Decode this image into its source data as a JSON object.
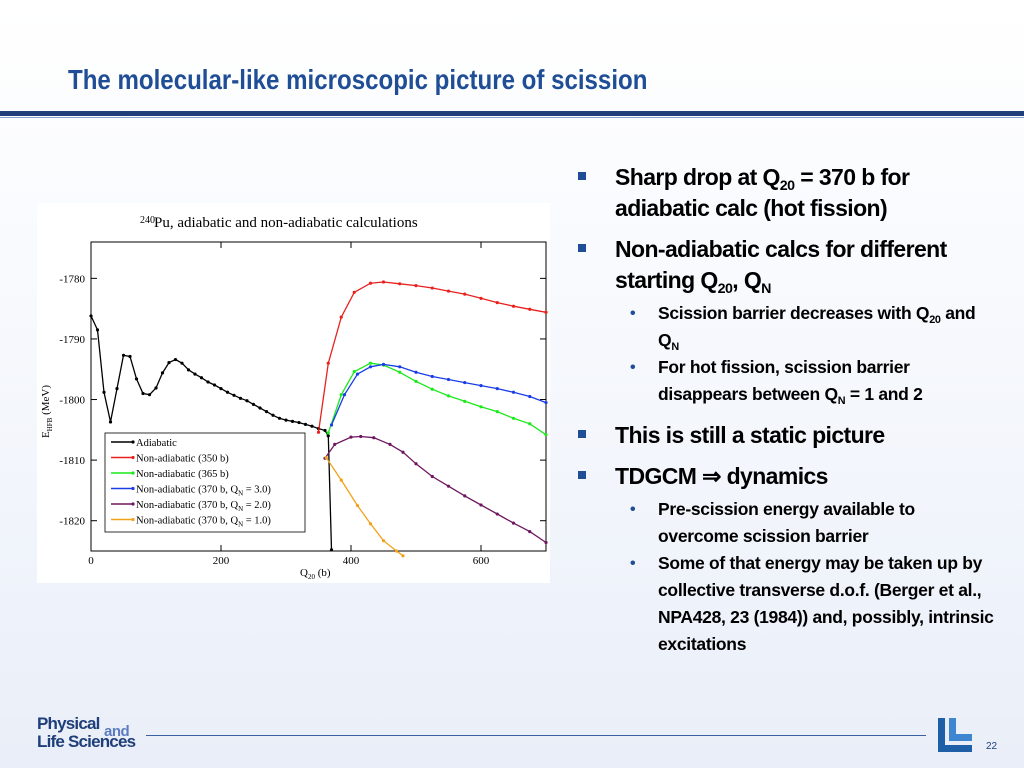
{
  "slide": {
    "title": "The molecular-like microscopic picture of scission",
    "page_number": "22",
    "footer_logo_text": [
      "Physical",
      "and",
      "Life Sciences"
    ]
  },
  "bullets": {
    "b1": {
      "pre": "Sharp drop at Q",
      "sub": "20",
      "post": " = 370 b for adiabatic calc (hot fission)"
    },
    "b2": {
      "pre": "Non-adiabatic calcs for different starting Q",
      "sub1": "20",
      "mid": ", Q",
      "sub2": "N"
    },
    "b2a": {
      "pre": "Scission barrier decreases with Q",
      "sub1": "20",
      "mid": " and Q",
      "sub2": "N"
    },
    "b2b": {
      "pre": "For hot fission, scission barrier disappears between Q",
      "sub": "N",
      "post": " = 1 and 2"
    },
    "b3": "This is still a static picture",
    "b4": {
      "pre": "TDGCM ",
      "arrow": "⇒",
      "post": " dynamics"
    },
    "b4a": "Pre-scission energy available to overcome scission barrier",
    "b4b": "Some of that energy may be taken up by collective transverse d.o.f. (Berger et al., NPA428, 23 (1984)) and, possibly, intrinsic excitations"
  },
  "chart_data": {
    "type": "line",
    "title_super": "240",
    "title": "Pu, adiabatic and non-adiabatic calculations",
    "xlabel_main": "Q",
    "xlabel_sub": "20",
    "xlabel_unit": " (b)",
    "ylabel_main": "E",
    "ylabel_sub": "HFB",
    "ylabel_unit": " (MeV)",
    "xlim": [
      0,
      700
    ],
    "ylim": [
      -1825,
      -1774
    ],
    "xticks": [
      0,
      200,
      400,
      600
    ],
    "yticks": [
      -1780,
      -1790,
      -1800,
      -1810,
      -1820
    ],
    "legend_position": "bottom-left",
    "series": [
      {
        "name": "Adiabatic",
        "color": "#000000",
        "x": [
          0,
          10,
          20,
          30,
          40,
          50,
          60,
          70,
          80,
          90,
          100,
          110,
          120,
          130,
          140,
          150,
          160,
          170,
          180,
          190,
          200,
          210,
          220,
          230,
          240,
          250,
          260,
          270,
          280,
          290,
          300,
          310,
          320,
          330,
          340,
          350,
          360,
          365,
          370
        ],
        "y": [
          -1786.2,
          -1788.5,
          -1798.8,
          -1803.7,
          -1798.2,
          -1792.7,
          -1792.9,
          -1796.6,
          -1799.0,
          -1799.2,
          -1798.1,
          -1795.6,
          -1793.9,
          -1793.4,
          -1794.0,
          -1795.1,
          -1795.8,
          -1796.4,
          -1797.1,
          -1797.6,
          -1798.2,
          -1798.8,
          -1799.3,
          -1799.8,
          -1800.2,
          -1800.8,
          -1801.4,
          -1802.0,
          -1802.6,
          -1803.1,
          -1803.4,
          -1803.6,
          -1803.8,
          -1804.1,
          -1804.4,
          -1804.8,
          -1805.1,
          -1806.0,
          -1824.8
        ]
      },
      {
        "name": "Non-adiabatic (350 b)",
        "color": "#e8211d",
        "x": [
          350,
          365,
          385,
          405,
          430,
          450,
          475,
          500,
          525,
          550,
          575,
          600,
          625,
          650,
          675,
          700
        ],
        "y": [
          -1805.4,
          -1794.0,
          -1786.4,
          -1782.3,
          -1780.8,
          -1780.6,
          -1780.9,
          -1781.2,
          -1781.6,
          -1782.1,
          -1782.6,
          -1783.3,
          -1784.0,
          -1784.6,
          -1785.1,
          -1785.6
        ]
      },
      {
        "name": "Non-adiabatic (365 b)",
        "color": "#19ea19",
        "x": [
          365,
          385,
          405,
          430,
          450,
          475,
          500,
          525,
          550,
          575,
          600,
          625,
          650,
          675,
          700
        ],
        "y": [
          -1805.5,
          -1799.2,
          -1795.4,
          -1794.0,
          -1794.3,
          -1795.5,
          -1797.0,
          -1798.3,
          -1799.4,
          -1800.3,
          -1801.2,
          -1802.0,
          -1803.1,
          -1804.0,
          -1805.8
        ]
      },
      {
        "name": "Non-adiabatic (370 b, Q_N = 3.0)",
        "color": "#1a3de6",
        "x": [
          370,
          390,
          410,
          430,
          450,
          475,
          500,
          525,
          550,
          575,
          600,
          625,
          650,
          675,
          700
        ],
        "y": [
          -1804.2,
          -1799.2,
          -1795.8,
          -1794.6,
          -1794.2,
          -1794.6,
          -1795.5,
          -1796.2,
          -1796.7,
          -1797.2,
          -1797.7,
          -1798.2,
          -1798.8,
          -1799.5,
          -1800.5
        ]
      },
      {
        "name": "Non-adiabatic (370 b, Q_N = 2.0)",
        "color": "#6e1760",
        "x": [
          360,
          375,
          400,
          415,
          435,
          460,
          480,
          500,
          525,
          550,
          575,
          600,
          625,
          650,
          675,
          700
        ],
        "y": [
          -1809.7,
          -1807.4,
          -1806.2,
          -1806.1,
          -1806.3,
          -1807.4,
          -1808.7,
          -1810.6,
          -1812.7,
          -1814.3,
          -1815.9,
          -1817.4,
          -1818.9,
          -1820.4,
          -1821.8,
          -1823.6
        ]
      },
      {
        "name": "Non-adiabatic (370 b, Q_N = 1.0)",
        "color": "#f2a21a",
        "x": [
          362,
          385,
          410,
          430,
          450,
          470,
          480
        ],
        "y": [
          -1809.6,
          -1813.3,
          -1817.5,
          -1820.5,
          -1823.3,
          -1825.0,
          -1825.8
        ]
      }
    ],
    "legend": [
      {
        "label": "Adiabatic",
        "sub": ""
      },
      {
        "label": "Non-adiabatic (350 b)",
        "sub": ""
      },
      {
        "label": "Non-adiabatic (365 b)",
        "sub": ""
      },
      {
        "label_pre": "Non-adiabatic (370 b, Q",
        "sub": "N",
        "label_post": " = 3.0)"
      },
      {
        "label_pre": "Non-adiabatic (370 b, Q",
        "sub": "N",
        "label_post": " = 2.0)"
      },
      {
        "label_pre": "Non-adiabatic (370 b, Q",
        "sub": "N",
        "label_post": " = 1.0)"
      }
    ]
  }
}
